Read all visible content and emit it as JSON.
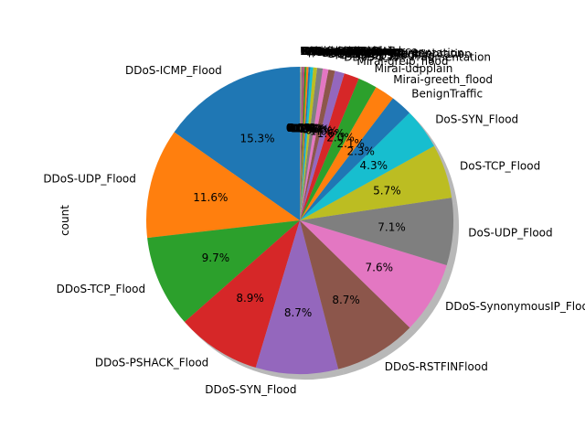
{
  "chart_data": {
    "type": "pie",
    "ylabel": "count",
    "shadow": true,
    "start_angle": 90,
    "direction": "counterclockwise",
    "slices": [
      {
        "label": "DDoS-ICMP_Flood",
        "value": 15.3,
        "pct_label": "15.3%",
        "color": "#1f77b4"
      },
      {
        "label": "DDoS-UDP_Flood",
        "value": 11.6,
        "pct_label": "11.6%",
        "color": "#ff7f0e"
      },
      {
        "label": "DDoS-TCP_Flood",
        "value": 9.7,
        "pct_label": "9.7%",
        "color": "#2ca02c"
      },
      {
        "label": "DDoS-PSHACK_Flood",
        "value": 8.9,
        "pct_label": "8.9%",
        "color": "#d62728"
      },
      {
        "label": "DDoS-SYN_Flood",
        "value": 8.7,
        "pct_label": "8.7%",
        "color": "#9467bd"
      },
      {
        "label": "DDoS-RSTFINFlood",
        "value": 8.7,
        "pct_label": "8.7%",
        "color": "#8c564b"
      },
      {
        "label": "DDoS-SynonymousIP_Flood",
        "value": 7.6,
        "pct_label": "7.6%",
        "color": "#e377c2"
      },
      {
        "label": "DoS-UDP_Flood",
        "value": 7.1,
        "pct_label": "7.1%",
        "color": "#7f7f7f"
      },
      {
        "label": "DoS-TCP_Flood",
        "value": 5.7,
        "pct_label": "5.7%",
        "color": "#bcbd22"
      },
      {
        "label": "DoS-SYN_Flood",
        "value": 4.3,
        "pct_label": "4.3%",
        "color": "#17becf"
      },
      {
        "label": "BenignTraffic",
        "value": 2.3,
        "pct_label": "2.3%",
        "color": "#1f77b4"
      },
      {
        "label": "Mirai-greeth_flood",
        "value": 2.1,
        "pct_label": "2.1%",
        "color": "#ff7f0e"
      },
      {
        "label": "Mirai-udpplain",
        "value": 2.0,
        "pct_label": "2.0%",
        "color": "#2ca02c"
      },
      {
        "label": "Mirai-greip_flood",
        "value": 1.6,
        "pct_label": "1.6%",
        "color": "#d62728"
      },
      {
        "label": "DDoS-ICMP_Fragmentation",
        "value": 1.0,
        "pct_label": "1.0%",
        "color": "#9467bd"
      },
      {
        "label": "MITM-ArpSpoofing",
        "value": 0.7,
        "pct_label": "0.7%",
        "color": "#8c564b"
      },
      {
        "label": "DDoS-UDP_Fragmentation",
        "value": 0.6,
        "pct_label": "0.6%",
        "color": "#e377c2"
      },
      {
        "label": "DDoS-ACK_Fragmentation",
        "value": 0.6,
        "pct_label": "0.6%",
        "color": "#7f7f7f"
      },
      {
        "label": "DNS_Spoofing",
        "value": 0.4,
        "pct_label": "0.4%",
        "color": "#bcbd22"
      },
      {
        "label": "Recon-HostDiscovery",
        "value": 0.3,
        "pct_label": "0.3%",
        "color": "#17becf"
      },
      {
        "label": "Recon-OSScan",
        "value": 0.2,
        "pct_label": "0.2%",
        "color": "#1f77b4"
      },
      {
        "label": "Recon-PortScan",
        "value": 0.2,
        "pct_label": "0.2%",
        "color": "#ff7f0e"
      },
      {
        "label": "DoS-HTTP_Flood",
        "value": 0.2,
        "pct_label": "0.2%",
        "color": "#2ca02c"
      },
      {
        "label": "VulnerabilityScan",
        "value": 0.1,
        "pct_label": "0.1%",
        "color": "#d62728"
      },
      {
        "label": "DDoS-HTTP_Flood",
        "value": 0.1,
        "pct_label": "0.1%",
        "color": "#9467bd"
      },
      {
        "label": "DDoS-SlowLoris",
        "value": 0.1,
        "pct_label": "0.1%",
        "color": "#8c564b"
      },
      {
        "label": "DictionaryBruteForce",
        "value": 0.05,
        "pct_label": "0.0%",
        "color": "#e377c2"
      },
      {
        "label": "BrowserHijacking",
        "value": 0.03,
        "pct_label": "0.0%",
        "color": "#7f7f7f"
      },
      {
        "label": "SqlInjection",
        "value": 0.03,
        "pct_label": "0.0%",
        "color": "#bcbd22"
      },
      {
        "label": "CommandInjection",
        "value": 0.03,
        "pct_label": "0.0%",
        "color": "#17becf"
      },
      {
        "label": "XSS",
        "value": 0.02,
        "pct_label": "0.0%",
        "color": "#1f77b4"
      },
      {
        "label": "Backdoor_Malware",
        "value": 0.02,
        "pct_label": "0.0%",
        "color": "#ff7f0e"
      },
      {
        "label": "Recon-PingSweep",
        "value": 0.01,
        "pct_label": "0.0%",
        "color": "#2ca02c"
      },
      {
        "label": "Uploading_Attack",
        "value": 0.01,
        "pct_label": "0.0%",
        "color": "#d62728"
      }
    ]
  }
}
